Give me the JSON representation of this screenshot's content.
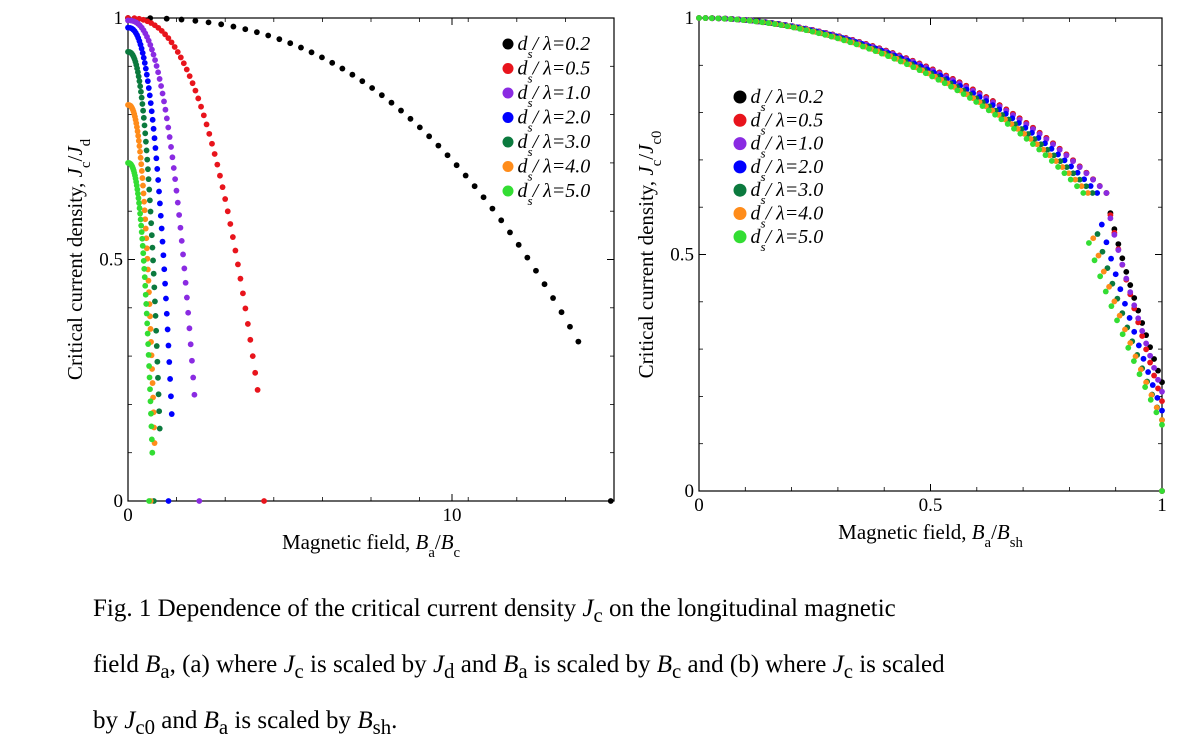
{
  "chart_data": [
    {
      "type": "scatter",
      "xlabel": "Magnetic field, B_a/B_c",
      "ylabel": "Critical current density, J_c/J_d",
      "xlim": [
        0,
        15
      ],
      "ylim": [
        0,
        1
      ],
      "xticks": [
        {
          "v": 0,
          "label": "0"
        },
        {
          "v": 10,
          "label": "10"
        }
      ],
      "yticks": [
        {
          "v": 0,
          "label": "0"
        },
        {
          "v": 0.5,
          "label": "0.5"
        },
        {
          "v": 1,
          "label": "1"
        }
      ],
      "legend_position": "top-right",
      "grid": false,
      "series": [
        {
          "name": "ds/λ=0.2",
          "color": "#000000",
          "kind": "quad",
          "y0": 1.0,
          "xc": 13.9,
          "ye": 0.33,
          "xz": 14.9,
          "yz": 0.0
        },
        {
          "name": "ds/λ=0.5",
          "color": "#e8141c",
          "kind": "quad",
          "y0": 1.0,
          "xc": 4.0,
          "ye": 0.23,
          "xz": 4.2,
          "yz": 0.0
        },
        {
          "name": "ds/λ=1.0",
          "color": "#8a2be2",
          "kind": "quad",
          "y0": 0.995,
          "xc": 2.05,
          "ye": 0.22,
          "xz": 2.2,
          "yz": 0.0
        },
        {
          "name": "ds/λ=2.0",
          "color": "#0000ff",
          "kind": "quad",
          "y0": 0.98,
          "xc": 1.35,
          "ye": 0.18,
          "xz": 1.25,
          "yz": 0.0
        },
        {
          "name": "ds/λ=3.0",
          "color": "#0b7a3e",
          "kind": "quad",
          "y0": 0.93,
          "xc": 0.98,
          "ye": 0.15,
          "xz": 0.8,
          "yz": 0.0
        },
        {
          "name": "ds/λ=4.0",
          "color": "#ff8c1a",
          "kind": "quad",
          "y0": 0.82,
          "xc": 0.82,
          "ye": 0.12,
          "xz": 0.7,
          "yz": 0.0
        },
        {
          "name": "ds/λ=5.0",
          "color": "#33dd33",
          "kind": "quad",
          "y0": 0.7,
          "xc": 0.75,
          "ye": 0.1,
          "xz": 0.65,
          "yz": 0.0
        }
      ]
    },
    {
      "type": "scatter",
      "xlabel": "Magnetic field, B_a/B_sh",
      "ylabel": "Critical current density, J_c/J_c0",
      "xlim": [
        0,
        1
      ],
      "ylim": [
        0,
        1
      ],
      "xticks": [
        {
          "v": 0,
          "label": "0"
        },
        {
          "v": 0.5,
          "label": "0.5"
        },
        {
          "v": 1,
          "label": "1"
        }
      ],
      "yticks": [
        {
          "v": 0,
          "label": "0"
        },
        {
          "v": 0.5,
          "label": "0.5"
        },
        {
          "v": 1,
          "label": "1"
        }
      ],
      "legend_position": "top-left",
      "grid": false,
      "series": [
        {
          "name": "ds/λ=0.2",
          "color": "#000000",
          "kind": "drop",
          "a": 0.42,
          "xk": 0.88,
          "yk": 0.63,
          "ye": 0.23
        },
        {
          "name": "ds/λ=0.5",
          "color": "#e8141c",
          "kind": "drop",
          "a": 0.42,
          "xk": 0.88,
          "yk": 0.63,
          "ye": 0.19
        },
        {
          "name": "ds/λ=1.0",
          "color": "#8a2be2",
          "kind": "drop",
          "a": 0.43,
          "xk": 0.88,
          "yk": 0.62,
          "ye": 0.21
        },
        {
          "name": "ds/λ=2.0",
          "color": "#0000ff",
          "kind": "drop",
          "a": 0.44,
          "xk": 0.86,
          "yk": 0.61,
          "ye": 0.17
        },
        {
          "name": "ds/λ=3.0",
          "color": "#0b7a3e",
          "kind": "drop",
          "a": 0.46,
          "xk": 0.85,
          "yk": 0.59,
          "ye": 0.15
        },
        {
          "name": "ds/λ=4.0",
          "color": "#ff8c1a",
          "kind": "drop",
          "a": 0.47,
          "xk": 0.84,
          "yk": 0.58,
          "ye": 0.15
        },
        {
          "name": "ds/λ=5.0",
          "color": "#33dd33",
          "kind": "drop",
          "a": 0.48,
          "xk": 0.83,
          "yk": 0.57,
          "ye": 0.14
        }
      ]
    }
  ],
  "caption": {
    "fig_label": "Fig. 1",
    "text": "Dependence of the critical current density J_c on the longitudinal magnetic field B_a, (a) where J_c is scaled by J_d and B_a is scaled by B_c and (b) where J_c is scaled by J_c0 and B_a is scaled by B_sh."
  }
}
